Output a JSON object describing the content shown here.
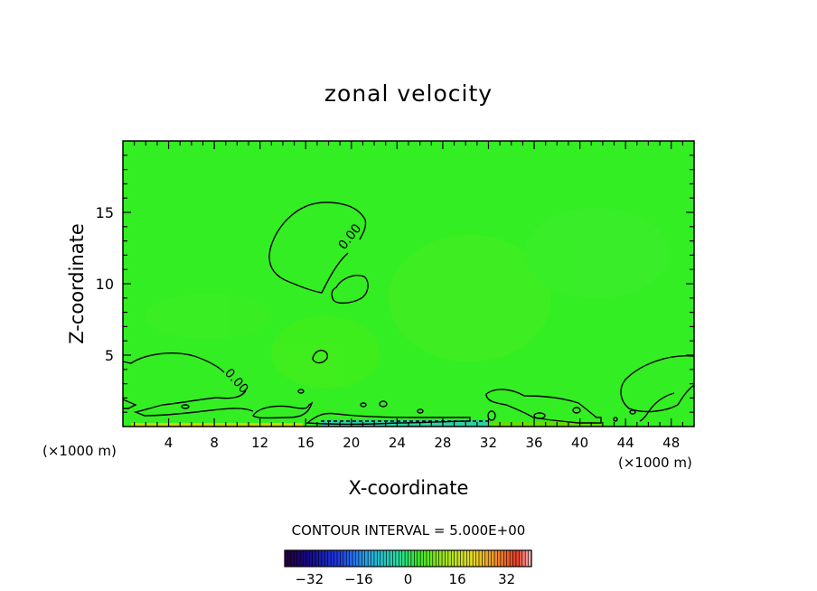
{
  "chart_data": {
    "type": "contour",
    "title": "zonal velocity",
    "xlabel": "X-coordinate",
    "ylabel": "Z-coordinate",
    "x_unit_left": "(×1000 m)",
    "x_unit_right": "(×1000 m)",
    "xlim": [
      0,
      50
    ],
    "ylim": [
      0,
      20
    ],
    "x_ticks": [
      4,
      8,
      12,
      16,
      20,
      24,
      28,
      32,
      36,
      40,
      44,
      48
    ],
    "y_ticks": [
      5,
      10,
      15
    ],
    "contour_interval_text": "CONTOUR INTERVAL = 5.000E+00",
    "contour_labels": [
      {
        "text": "0.00",
        "x": 20.6,
        "z": 13.0
      },
      {
        "text": "0.00",
        "x": 10.0,
        "z": 3.3
      }
    ],
    "colorbar": {
      "ticks": [
        -32,
        -16,
        0,
        16,
        32
      ],
      "range": [
        -40,
        40
      ]
    },
    "field_color": "#33ee22"
  }
}
